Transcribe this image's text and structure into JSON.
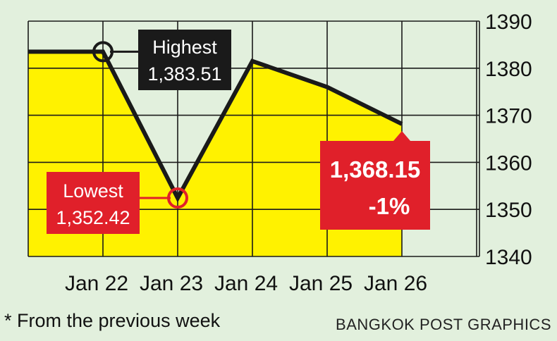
{
  "chart_data": {
    "type": "line",
    "categories": [
      "Jan 22",
      "Jan 23",
      "Jan 24",
      "Jan 25",
      "Jan 26"
    ],
    "x_labels": [
      "Jan 22",
      "Jan 23",
      "Jan 24",
      "Jan 25",
      "Jan 26"
    ],
    "x_start_value": 1383.51,
    "values": [
      1383.51,
      1352.42,
      1381.5,
      1376.0,
      1368.15
    ],
    "y_ticks": [
      "1340",
      "1350",
      "1360",
      "1370",
      "1380",
      "1390"
    ],
    "ylim": [
      1340,
      1390
    ],
    "y_axis_side": "right",
    "grid": true,
    "fill_area": true,
    "colors": {
      "background": "#e2f0dd",
      "fill": "#fff200",
      "line": "#1a1a1a",
      "grid": "#1a1a1a",
      "highest_box": "#1a1a1a",
      "lowest_box": "#e0202a",
      "last_box": "#e0202a"
    },
    "annotations": {
      "highest": {
        "title": "Highest",
        "value": "1,383.51"
      },
      "lowest": {
        "title": "Lowest",
        "value": "1,352.42"
      },
      "last": {
        "value": "1,368.15",
        "change": "-1%"
      }
    }
  },
  "footnote": "* From the previous week",
  "credit": "BANGKOK POST GRAPHICS"
}
